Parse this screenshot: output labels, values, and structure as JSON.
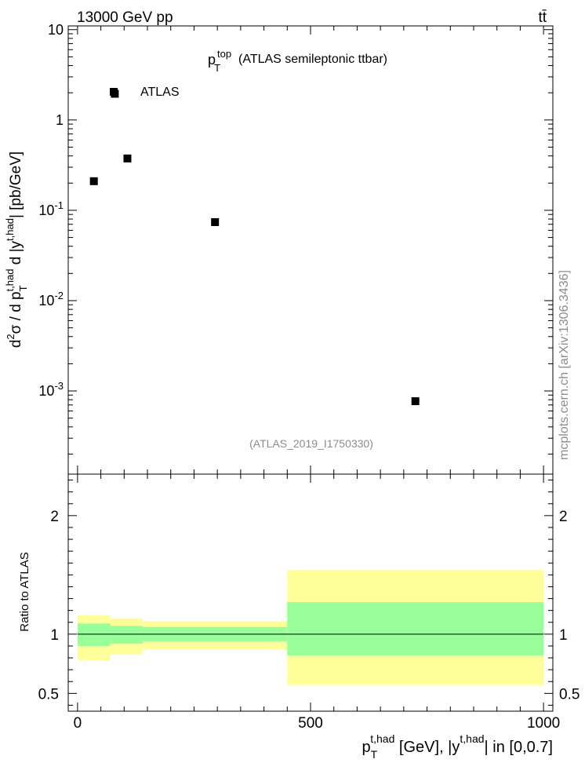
{
  "header": {
    "energy_label": "13000 GeV pp",
    "process_label": "tt̄"
  },
  "side_label": "mcplots.cern.ch [arXiv:1306.3436]",
  "colors": {
    "band_outer": "#ffff99",
    "band_inner": "#99ff99",
    "marker": "#000000",
    "analysis_id": "#8c8c8c"
  },
  "chart_data": [
    {
      "type": "scatter",
      "title": "(ATLAS semileptonic ttbar)",
      "title_observable": "p_T^top",
      "analysis_id": "(ATLAS_2019_I1750330)",
      "ylabel": "d²σ / d p_T^{t,had} d |y^{t,had}| [pb/GeV]",
      "y_scale": "log",
      "ylim": [
        0.00012,
        11
      ],
      "xlim": [
        -20,
        1020
      ],
      "y_ticks": [
        {
          "value": 10,
          "label": "10"
        },
        {
          "value": 1,
          "label": "1"
        },
        {
          "value": 0.1,
          "label": "10^-1"
        },
        {
          "value": 0.01,
          "label": "10^-2"
        },
        {
          "value": 0.001,
          "label": "10^-3"
        }
      ],
      "legend": {
        "position": "top-left",
        "entries": [
          "ATLAS"
        ]
      },
      "series": [
        {
          "name": "ATLAS",
          "x": [
            35,
            80,
            107,
            295,
            725
          ],
          "y": [
            0.21,
            1.95,
            0.375,
            0.074,
            0.00077
          ]
        }
      ]
    },
    {
      "type": "area",
      "ylabel": "Ratio to ATLAS",
      "xlabel": "p_T^{t,had} [GeV], |y^{t,had}| in [0,0.7]",
      "xlim": [
        -20,
        1020
      ],
      "ylim": [
        0.35,
        2.35
      ],
      "x_ticks": [
        0,
        500,
        1000
      ],
      "y_ticks": [
        0.5,
        1,
        2
      ],
      "reference_line": 1,
      "bands": [
        {
          "x0": 0,
          "x1": 70,
          "inner": [
            0.9,
            1.09
          ],
          "outer": [
            0.78,
            1.16
          ]
        },
        {
          "x0": 70,
          "x1": 140,
          "inner": [
            0.92,
            1.07
          ],
          "outer": [
            0.83,
            1.13
          ]
        },
        {
          "x0": 140,
          "x1": 450,
          "inner": [
            0.94,
            1.06
          ],
          "outer": [
            0.87,
            1.11
          ]
        },
        {
          "x0": 450,
          "x1": 1000,
          "inner": [
            0.82,
            1.27
          ],
          "outer": [
            0.57,
            1.54
          ]
        }
      ]
    }
  ]
}
